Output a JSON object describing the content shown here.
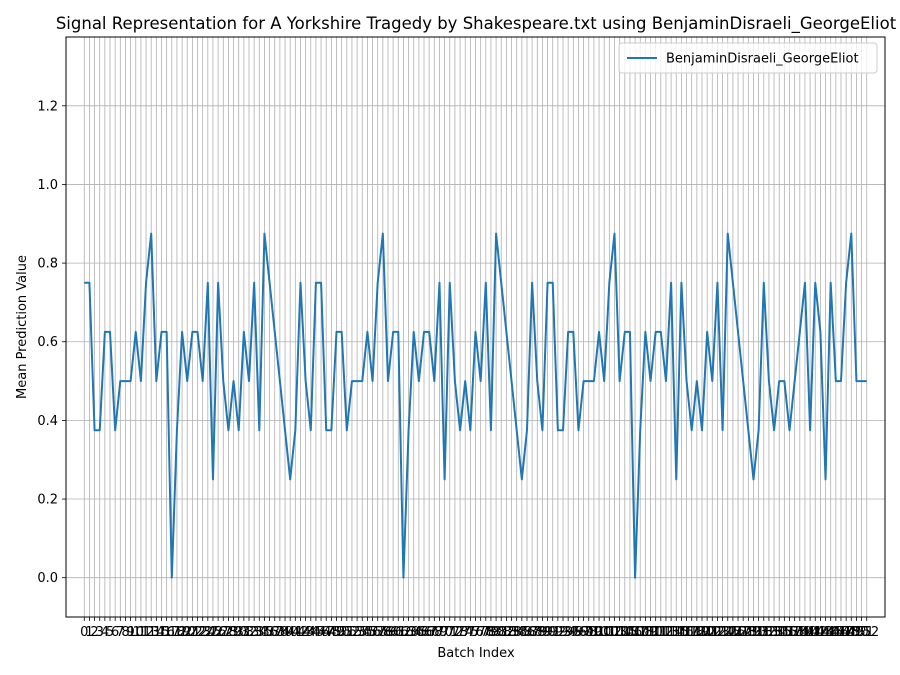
{
  "chart_data": {
    "type": "line",
    "title": "Signal Representation for A Yorkshire Tragedy by Shakespeare.txt using BenjaminDisraeli_GeorgeEliot",
    "xlabel": "Batch Index",
    "ylabel": "Mean Prediction Value",
    "ylim": [
      -0.1,
      1.375
    ],
    "xlim": [
      -3.55,
      155.55
    ],
    "yticks": [
      0.0,
      0.2,
      0.4,
      0.6,
      0.8,
      1.0,
      1.2
    ],
    "ytick_labels": [
      "0.0",
      "0.2",
      "0.4",
      "0.6",
      "0.8",
      "1.0",
      "1.2"
    ],
    "grid": true,
    "legend_position": "top-right",
    "series": [
      {
        "name": "BenjaminDisraeli_GeorgeEliot",
        "color": "#1f77b4",
        "x": [
          0,
          1,
          2,
          3,
          4,
          5,
          6,
          7,
          8,
          9,
          10,
          11,
          12,
          13,
          14,
          15,
          16,
          17,
          18,
          19,
          20,
          21,
          22,
          23,
          24,
          25,
          26,
          27,
          28,
          29,
          30,
          31,
          32,
          33,
          34,
          35,
          36,
          37,
          38,
          39,
          40,
          41,
          42,
          43,
          44,
          45,
          46,
          47,
          48,
          49,
          50,
          51,
          52,
          53,
          54,
          55,
          56,
          57,
          58,
          59,
          60,
          61,
          62,
          63,
          64,
          65,
          66,
          67,
          68,
          69,
          70,
          71,
          72,
          73,
          74,
          75,
          76,
          77,
          78,
          79,
          80,
          81,
          82,
          83,
          84,
          85,
          86,
          87,
          88,
          89,
          90,
          91,
          92,
          93,
          94,
          95,
          96,
          97,
          98,
          99,
          100,
          101,
          102,
          103,
          104,
          105,
          106,
          107,
          108,
          109,
          110,
          111,
          112,
          113,
          114,
          115,
          116,
          117,
          118,
          119,
          120,
          121,
          122,
          123,
          124,
          125,
          126,
          127,
          128,
          129,
          130,
          131,
          132,
          133,
          134,
          135,
          136,
          137,
          138,
          139,
          140,
          141,
          142,
          143,
          144,
          145,
          146,
          147,
          148,
          149,
          150,
          151,
          152
        ],
        "values": [
          0.75,
          0.75,
          0.375,
          0.375,
          0.625,
          0.625,
          0.375,
          0.5,
          0.5,
          0.5,
          0.625,
          0.5,
          0.75,
          0.875,
          0.5,
          0.625,
          0.625,
          0.0,
          0.375,
          0.625,
          0.5,
          0.625,
          0.625,
          0.5,
          0.75,
          0.25,
          0.75,
          0.5,
          0.375,
          0.5,
          0.375,
          0.625,
          0.5,
          0.75,
          0.375,
          0.875,
          0.75,
          0.625,
          0.5,
          0.375,
          0.25,
          0.375,
          0.75,
          0.5,
          0.375,
          0.75,
          0.75,
          0.375,
          0.375,
          0.625,
          0.625,
          0.375,
          0.5,
          0.5,
          0.5,
          0.625,
          0.5,
          0.75,
          0.875,
          0.5,
          0.625,
          0.625,
          0.0,
          0.375,
          0.625,
          0.5,
          0.625,
          0.625,
          0.5,
          0.75,
          0.25,
          0.75,
          0.5,
          0.375,
          0.5,
          0.375,
          0.625,
          0.5,
          0.75,
          0.375,
          0.875,
          0.75,
          0.625,
          0.5,
          0.375,
          0.25,
          0.375,
          0.75,
          0.5,
          0.375,
          0.75,
          0.75,
          0.375,
          0.375,
          0.625,
          0.625,
          0.375,
          0.5,
          0.5,
          0.5,
          0.625,
          0.5,
          0.75,
          0.875,
          0.5,
          0.625,
          0.625,
          0.0,
          0.375,
          0.625,
          0.5,
          0.625,
          0.625,
          0.5,
          0.75,
          0.25,
          0.75,
          0.5,
          0.375,
          0.5,
          0.375,
          0.625,
          0.5,
          0.75,
          0.375,
          0.875,
          0.75,
          0.625,
          0.5,
          0.375,
          0.25,
          0.375,
          0.75,
          0.5,
          0.375,
          0.5,
          0.5,
          0.375,
          0.5,
          0.625,
          0.75,
          0.375,
          0.75,
          0.625,
          0.25,
          0.75,
          0.5,
          0.5,
          0.75,
          0.875,
          0.5,
          0.5,
          0.5
        ]
      }
    ]
  }
}
